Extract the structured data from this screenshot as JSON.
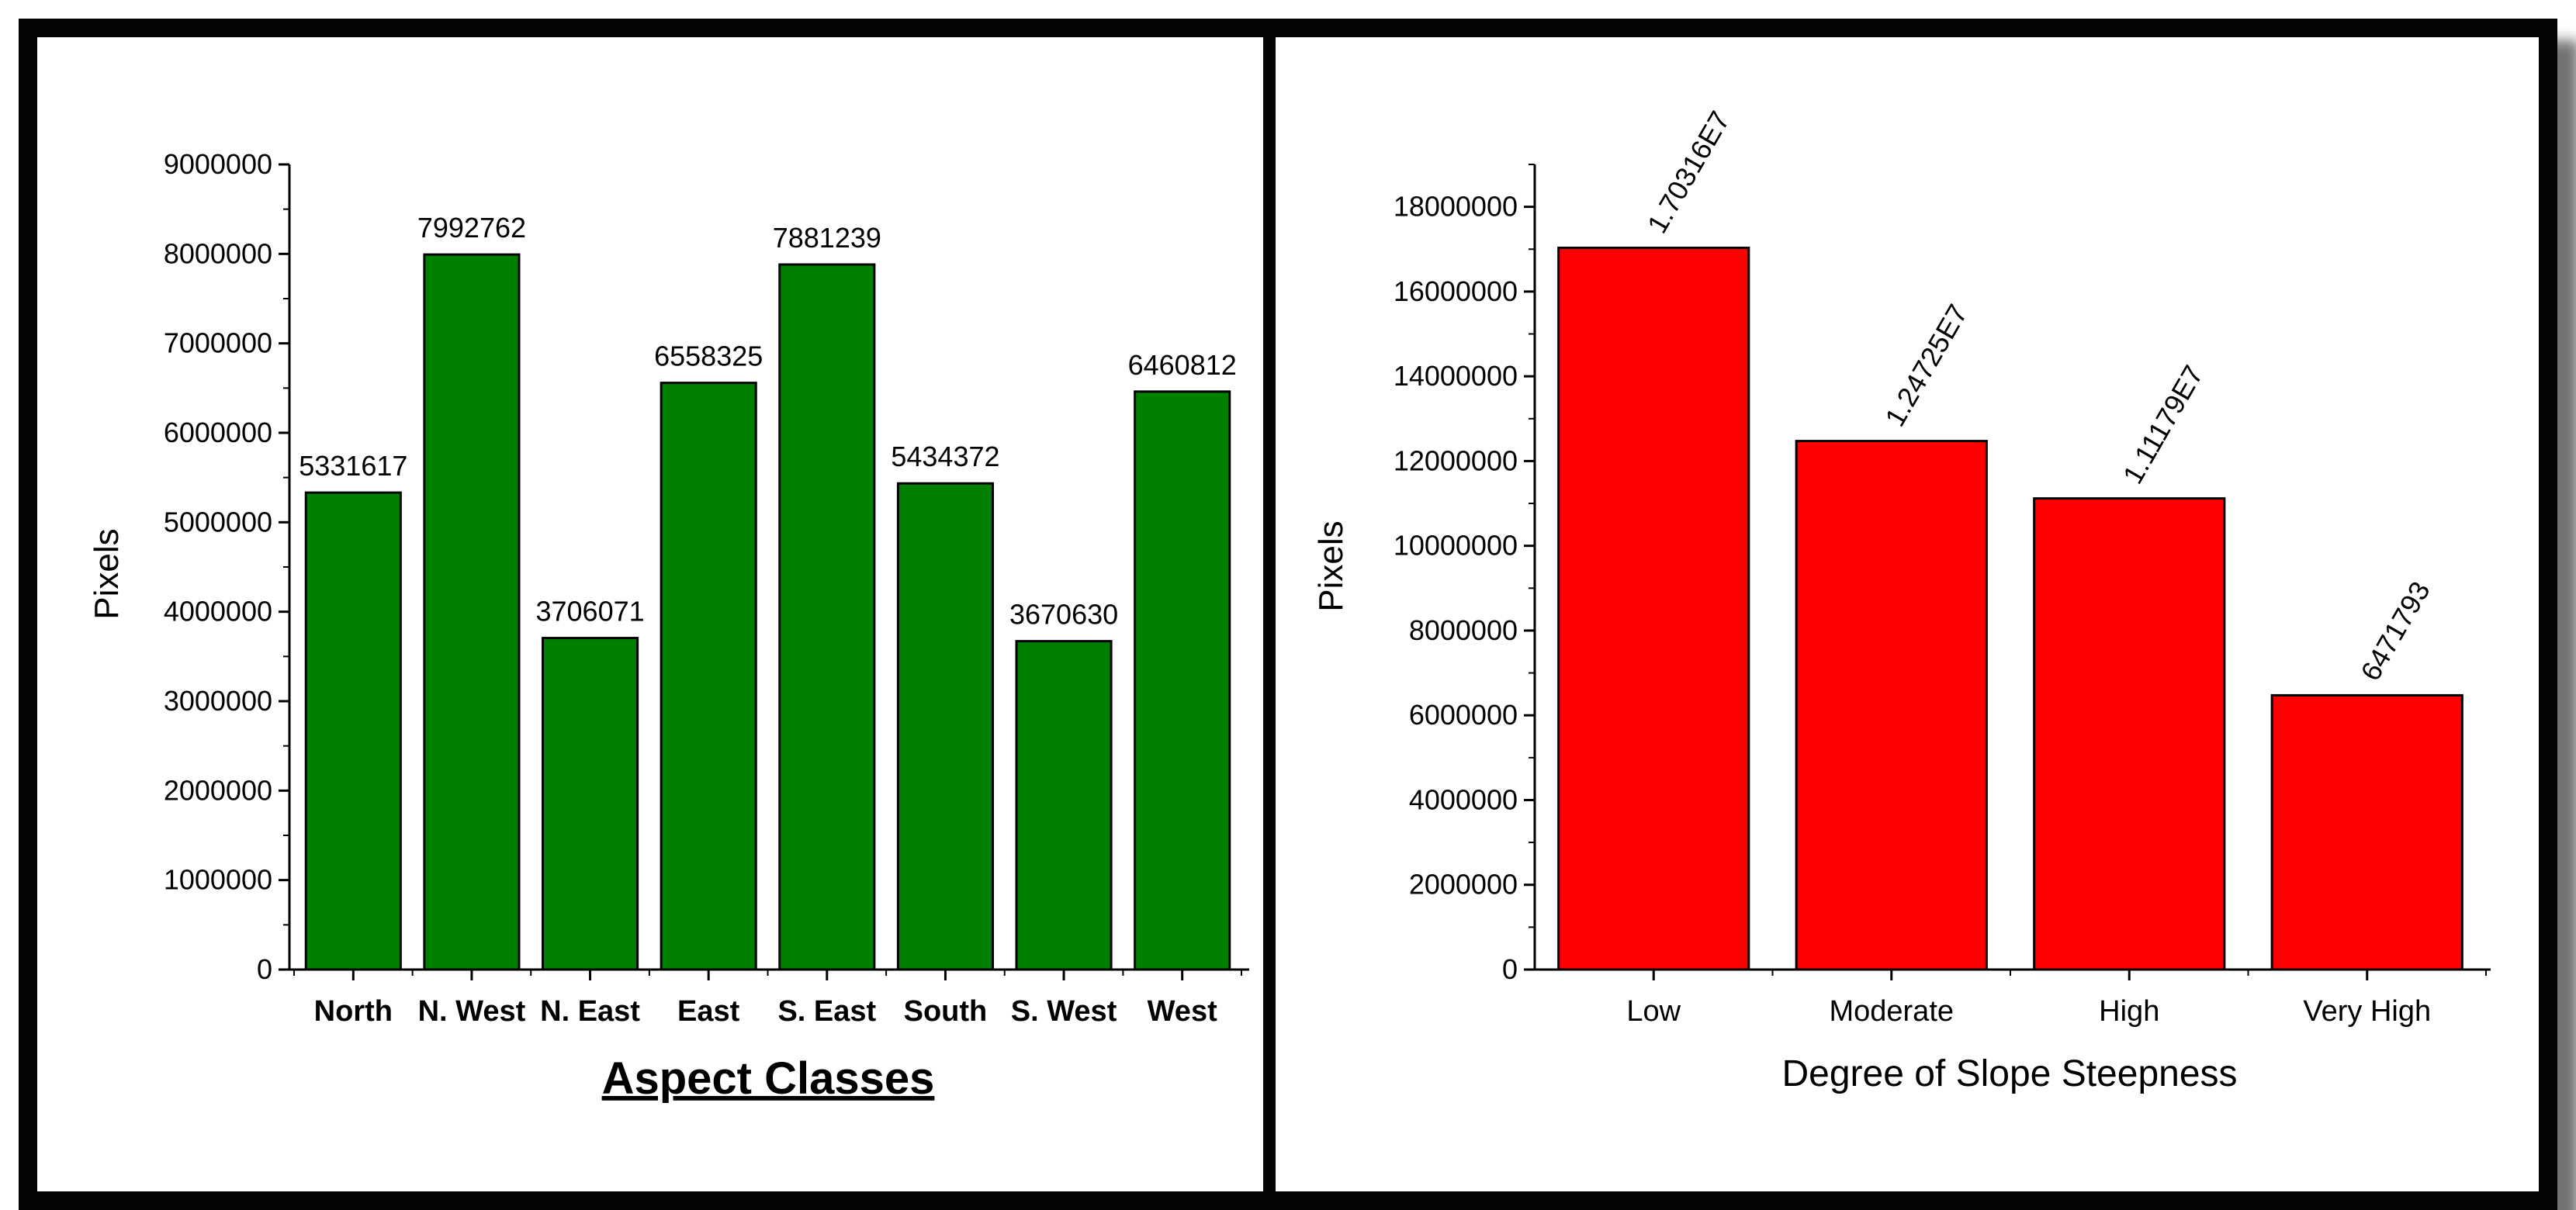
{
  "chart_data": [
    {
      "type": "bar",
      "color": "#008000",
      "categories": [
        "North",
        "N. West",
        "N. East",
        "East",
        "S. East",
        "South",
        "S. West",
        "West"
      ],
      "values": [
        5331617,
        7992762,
        3706071,
        6558325,
        7881239,
        5434372,
        3670630,
        6460812
      ],
      "value_labels": [
        "5331617",
        "7992762",
        "3706071",
        "6558325",
        "7881239",
        "5434372",
        "3670630",
        "6460812"
      ],
      "ylabel": "Pixels",
      "xlabel": "Aspect Classes",
      "ylim": [
        0,
        9000000
      ],
      "yticks": [
        "0",
        "1000000",
        "2000000",
        "3000000",
        "4000000",
        "5000000",
        "6000000",
        "7000000",
        "8000000",
        "9000000"
      ]
    },
    {
      "type": "bar",
      "color": "#ff0000",
      "categories": [
        "Low",
        "Moderate",
        "High",
        "Very High"
      ],
      "values": [
        17031600,
        12472500,
        11117900,
        6471793
      ],
      "value_labels": [
        "1.70316E7",
        "1.24725E7",
        "1.11179E7",
        "6471793"
      ],
      "ylabel": "Pixels",
      "xlabel": "Degree of Slope Steepness",
      "ylim": [
        0,
        19000000
      ],
      "yticks": [
        "0",
        "2000000",
        "4000000",
        "6000000",
        "8000000",
        "10000000",
        "12000000",
        "14000000",
        "16000000",
        "18000000"
      ]
    }
  ]
}
